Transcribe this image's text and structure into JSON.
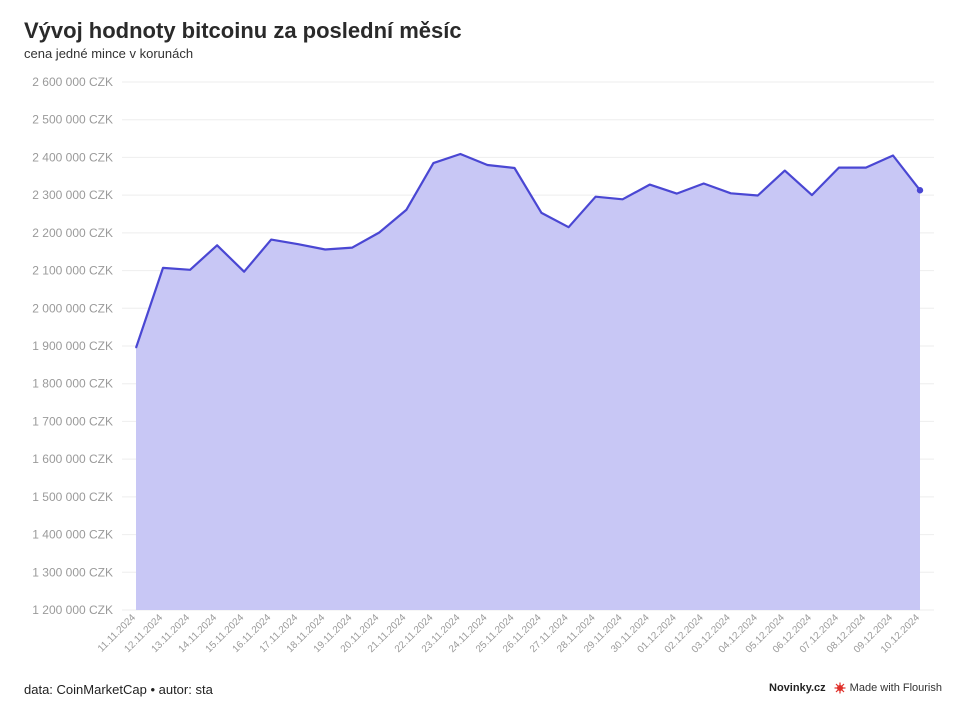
{
  "header": {
    "title": "Vývoj hodnoty bitcoinu za poslední měsíc",
    "subtitle": "cena jedné mince v korunách"
  },
  "footer": {
    "source": "data: CoinMarketCap • autor: sta",
    "brand": "Novinky.cz",
    "made_with": "Made with Flourish"
  },
  "colors": {
    "line": "#4a47d3",
    "area": "#c8c7f5",
    "grid": "#eeeeee",
    "flourish": "#e0312b"
  },
  "chart_data": {
    "type": "area",
    "title": "Vývoj hodnoty bitcoinu za poslední měsíc",
    "subtitle": "cena jedné mince v korunách",
    "xlabel": "",
    "ylabel": "",
    "ylim": [
      1200000,
      2600000
    ],
    "yticks": [
      1200000,
      1300000,
      1400000,
      1500000,
      1600000,
      1700000,
      1800000,
      1900000,
      2000000,
      2100000,
      2200000,
      2300000,
      2400000,
      2500000,
      2600000
    ],
    "ytick_labels": [
      "1 200 000 CZK",
      "1 300 000 CZK",
      "1 400 000 CZK",
      "1 500 000 CZK",
      "1 600 000 CZK",
      "1 700 000 CZK",
      "1 800 000 CZK",
      "1 900 000 CZK",
      "2 000 000 CZK",
      "2 100 000 CZK",
      "2 200 000 CZK",
      "2 300 000 CZK",
      "2 400 000 CZK",
      "2 500 000 CZK",
      "2 600 000 CZK"
    ],
    "grid": true,
    "categories": [
      "11.11.2024",
      "12.11.2024",
      "13.11.2024",
      "14.11.2024",
      "15.11.2024",
      "16.11.2024",
      "17.11.2024",
      "18.11.2024",
      "19.11.2024",
      "20.11.2024",
      "21.11.2024",
      "22.11.2024",
      "23.11.2024",
      "24.11.2024",
      "25.11.2024",
      "26.11.2024",
      "27.11.2024",
      "28.11.2024",
      "29.11.2024",
      "30.11.2024",
      "01.12.2024",
      "02.12.2024",
      "03.12.2024",
      "04.12.2024",
      "05.12.2024",
      "06.12.2024",
      "07.12.2024",
      "08.12.2024",
      "09.12.2024",
      "10.12.2024"
    ],
    "values": [
      1895000,
      2107000,
      2102000,
      2167000,
      2097000,
      2182000,
      2170000,
      2156000,
      2161000,
      2201000,
      2261000,
      2385000,
      2409000,
      2380000,
      2372000,
      2253000,
      2215000,
      2296000,
      2289000,
      2328000,
      2304000,
      2331000,
      2305000,
      2299000,
      2365000,
      2300000,
      2373000,
      2373000,
      2405000,
      2313000
    ]
  }
}
